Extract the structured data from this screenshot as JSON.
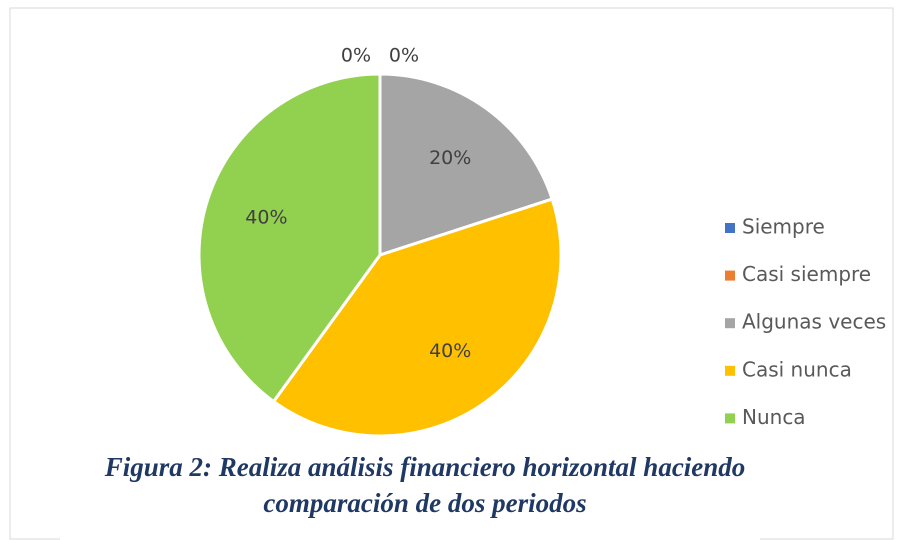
{
  "chart_data": {
    "type": "pie",
    "categories": [
      "Siempre",
      "Casi siempre",
      "Algunas veces",
      "Casi nunca",
      "Nunca"
    ],
    "values": [
      0,
      0,
      20,
      40,
      40
    ],
    "value_labels": [
      "0%",
      "0%",
      "20%",
      "40%",
      "40%"
    ],
    "colors": [
      "#4472c4",
      "#ed7d31",
      "#a5a5a5",
      "#ffc000",
      "#92d050"
    ],
    "legend": "right",
    "caption": [
      "Figura 2: Realiza análisis financiero horizontal haciendo",
      "comparación de dos periodos"
    ]
  }
}
